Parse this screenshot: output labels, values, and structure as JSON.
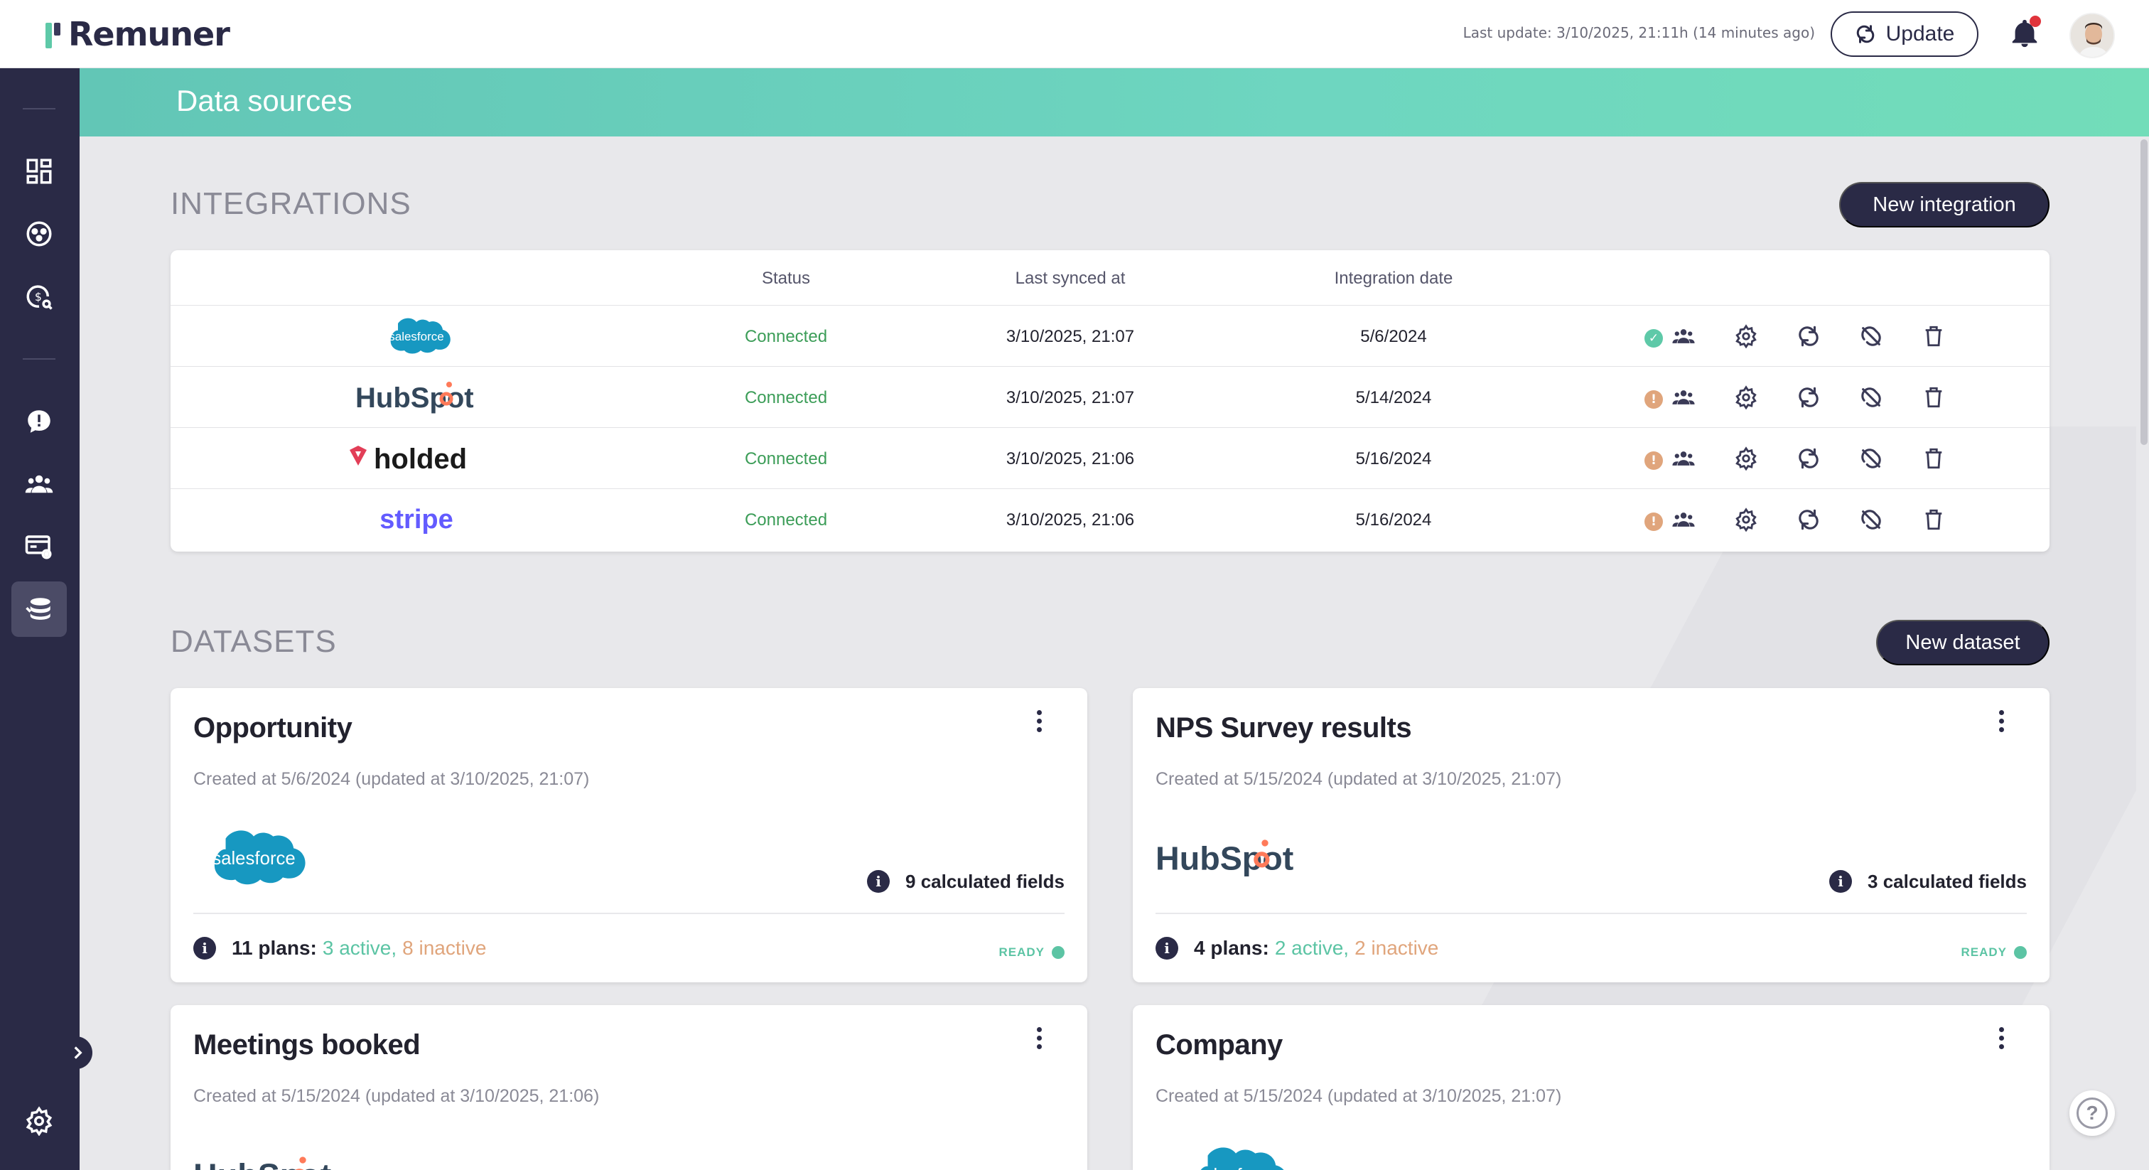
{
  "app": {
    "name": "Remuner",
    "last_update": "Last update: 3/10/2025, 21:11h (14 minutes ago)",
    "update_label": "Update"
  },
  "page": {
    "title": "Data sources"
  },
  "sidebar": {
    "items": [
      {
        "icon": "dashboard-icon"
      },
      {
        "icon": "org-chart-icon"
      },
      {
        "icon": "commission-search-icon"
      },
      {
        "icon": "chat-alert-icon"
      },
      {
        "icon": "people-icon"
      },
      {
        "icon": "plan-settings-icon"
      },
      {
        "icon": "database-icon",
        "active": true
      }
    ],
    "bottom_icon": "settings-icon"
  },
  "integrations": {
    "title": "INTEGRATIONS",
    "new_label": "New integration",
    "columns": [
      "Status",
      "Last synced at",
      "Integration date"
    ],
    "rows": [
      {
        "logo": "salesforce",
        "logo_text": "salesforce",
        "status": "Connected",
        "last_synced": "3/10/2025, 21:07",
        "date": "5/6/2024",
        "health": "ok"
      },
      {
        "logo": "hubspot",
        "logo_text": "HubSpot",
        "status": "Connected",
        "last_synced": "3/10/2025, 21:07",
        "date": "5/14/2024",
        "health": "warn"
      },
      {
        "logo": "holded",
        "logo_text": "holded",
        "status": "Connected",
        "last_synced": "3/10/2025, 21:06",
        "date": "5/16/2024",
        "health": "warn"
      },
      {
        "logo": "stripe",
        "logo_text": "stripe",
        "status": "Connected",
        "last_synced": "3/10/2025, 21:06",
        "date": "5/16/2024",
        "health": "warn"
      }
    ]
  },
  "datasets": {
    "title": "DATASETS",
    "new_label": "New dataset",
    "cards": [
      {
        "title": "Opportunity",
        "sub": "Created at 5/6/2024 (updated at 3/10/2025, 21:07)",
        "logo": "salesforce",
        "logo_text": "salesforce",
        "calc": "9 calculated fields",
        "plans": "11 plans:",
        "active": "3 active,",
        "inactive": "8 inactive",
        "ready": "READY"
      },
      {
        "title": "NPS Survey results",
        "sub": "Created at 5/15/2024 (updated at 3/10/2025, 21:07)",
        "logo": "hubspot",
        "logo_text": "HubSpot",
        "calc": "3 calculated fields",
        "plans": "4 plans:",
        "active": "2 active,",
        "inactive": "2 inactive",
        "ready": "READY"
      },
      {
        "title": "Meetings booked",
        "sub": "Created at 5/15/2024 (updated at 3/10/2025, 21:06)",
        "logo": "hubspot",
        "logo_text": "HubSpot"
      },
      {
        "title": "Company",
        "sub": "Created at 5/15/2024 (updated at 3/10/2025, 21:07)",
        "logo": "salesforce",
        "logo_text": "salesforce"
      }
    ]
  },
  "colors": {
    "sidebar": "#2a2a46",
    "accent": "#5ec9a8",
    "connected": "#3c9d58",
    "warn": "#e0a57c"
  }
}
